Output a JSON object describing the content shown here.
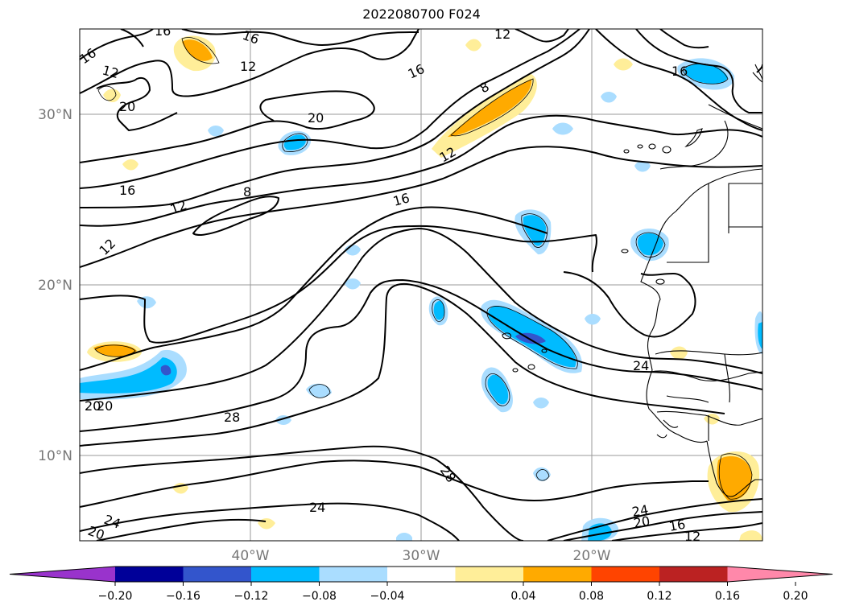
{
  "title": "2022080700 F024",
  "map": {
    "lat_labels": [
      "30°N",
      "20°N",
      "10°N"
    ],
    "lon_labels": [
      "40°W",
      "30°W",
      "20°W"
    ],
    "contour_labels": [
      "16",
      "16",
      "16",
      "12",
      "12",
      "12",
      "16",
      "8",
      "20",
      "20",
      "20",
      "16",
      "12",
      "16",
      "12",
      "8",
      "16",
      "12",
      "24",
      "20",
      "28",
      "28",
      "24",
      "24",
      "20",
      "24",
      "20",
      "16",
      "12"
    ]
  },
  "colorbar": {
    "ticks": [
      "−0.20",
      "−0.16",
      "−0.12",
      "−0.08",
      "−0.04",
      "0.04",
      "0.08",
      "0.12",
      "0.16",
      "0.20"
    ],
    "colors": {
      "under": "#9933cc",
      "c1": "#000099",
      "c2": "#3355cc",
      "c3": "#00bbff",
      "c4": "#aaddff",
      "c5": "#ffffff",
      "c6": "#ffee99",
      "c7": "#ffaa00",
      "c8": "#ff4400",
      "c9": "#bb2222",
      "over": "#ff88aa"
    }
  }
}
